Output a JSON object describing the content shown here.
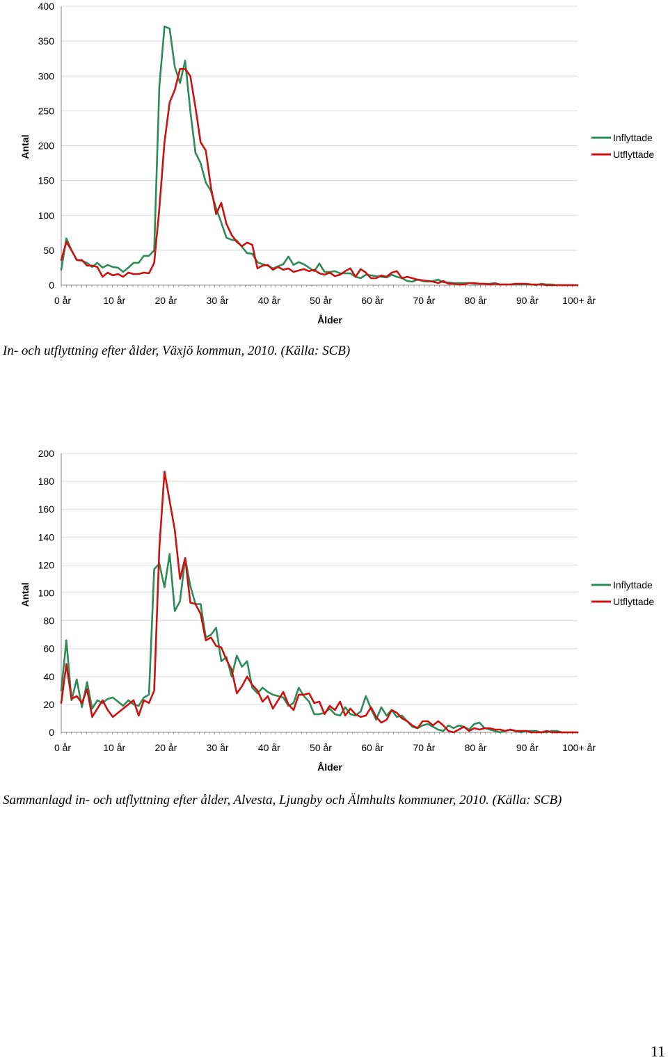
{
  "page_number": "11",
  "chart_data": [
    {
      "type": "line",
      "caption": "In- och utflyttning efter ålder, Växjö kommun, 2010. (Källa: SCB)",
      "xlabel": "Ålder",
      "ylabel": "Antal",
      "ylim": [
        0,
        400
      ],
      "yticks": [
        "0",
        "50",
        "100",
        "150",
        "200",
        "250",
        "300",
        "350",
        "400"
      ],
      "ytick_values": [
        0,
        50,
        100,
        150,
        200,
        250,
        300,
        350,
        400
      ],
      "xticks": [
        "0 år",
        "10 år",
        "20 år",
        "30 år",
        "40 år",
        "50 år",
        "60 år",
        "70 år",
        "80 år",
        "90 år",
        "100+ år"
      ],
      "grid": true,
      "legend_position": "right",
      "categories_count": 101,
      "series": [
        {
          "name": "Inflyttade",
          "color": "#2e8b57",
          "values": [
            22,
            67,
            50,
            36,
            35,
            32,
            26,
            32,
            25,
            29,
            26,
            25,
            19,
            25,
            32,
            32,
            42,
            42,
            50,
            285,
            371,
            368,
            313,
            290,
            322,
            250,
            190,
            175,
            147,
            135,
            110,
            90,
            68,
            65,
            64,
            55,
            46,
            45,
            33,
            30,
            28,
            24,
            27,
            30,
            41,
            29,
            33,
            30,
            25,
            20,
            31,
            19,
            19,
            20,
            17,
            17,
            17,
            12,
            10,
            15,
            14,
            13,
            12,
            11,
            15,
            12,
            10,
            6,
            5,
            8,
            6,
            5,
            6,
            8,
            4,
            4,
            3,
            3,
            3,
            3,
            2,
            2,
            2,
            2,
            3,
            1,
            1,
            1,
            1,
            1,
            1,
            1,
            0,
            2,
            1,
            1,
            0,
            0,
            0,
            0,
            0
          ]
        },
        {
          "name": "Utflyttade",
          "color": "#cc1111",
          "values": [
            36,
            62,
            50,
            36,
            36,
            28,
            28,
            26,
            12,
            18,
            14,
            16,
            12,
            18,
            16,
            16,
            18,
            17,
            32,
            110,
            205,
            262,
            280,
            310,
            310,
            300,
            255,
            205,
            193,
            140,
            102,
            118,
            88,
            72,
            62,
            56,
            61,
            58,
            24,
            28,
            29,
            22,
            26,
            22,
            24,
            19,
            21,
            23,
            20,
            22,
            17,
            15,
            18,
            13,
            15,
            20,
            24,
            12,
            23,
            18,
            10,
            10,
            14,
            12,
            18,
            20,
            10,
            12,
            10,
            8,
            7,
            6,
            5,
            3,
            6,
            2,
            2,
            1,
            1,
            3,
            3,
            2,
            2,
            1,
            2,
            1,
            1,
            1,
            2,
            2,
            2,
            1,
            1,
            1,
            0,
            0,
            0,
            0,
            0,
            0,
            0
          ]
        }
      ]
    },
    {
      "type": "line",
      "caption": "Sammanlagd in- och utflyttning efter ålder, Alvesta, Ljungby och Älmhults kommuner, 2010. (Källa: SCB)",
      "xlabel": "Ålder",
      "ylabel": "Antal",
      "ylim": [
        0,
        200
      ],
      "yticks": [
        "0",
        "20",
        "40",
        "60",
        "80",
        "100",
        "120",
        "140",
        "160",
        "180",
        "200"
      ],
      "ytick_values": [
        0,
        20,
        40,
        60,
        80,
        100,
        120,
        140,
        160,
        180,
        200
      ],
      "xticks": [
        "0 år",
        "10 år",
        "20 år",
        "30 år",
        "40 år",
        "50 år",
        "60 år",
        "70 år",
        "80 år",
        "90 år",
        "100+ år"
      ],
      "grid": true,
      "legend_position": "right",
      "categories_count": 101,
      "series": [
        {
          "name": "Inflyttade",
          "color": "#2e8b57",
          "values": [
            30,
            66,
            23,
            38,
            18,
            36,
            17,
            23,
            21,
            24,
            25,
            22,
            19,
            23,
            20,
            19,
            25,
            27,
            117,
            121,
            104,
            128,
            87,
            94,
            125,
            105,
            92,
            92,
            68,
            70,
            75,
            51,
            54,
            40,
            55,
            47,
            51,
            32,
            28,
            32,
            29,
            27,
            26,
            25,
            19,
            21,
            32,
            26,
            22,
            13,
            13,
            14,
            17,
            13,
            12,
            18,
            13,
            12,
            15,
            26,
            17,
            9,
            18,
            12,
            16,
            11,
            12,
            8,
            4,
            3,
            5,
            6,
            4,
            2,
            1,
            5,
            3,
            5,
            4,
            2,
            6,
            7,
            3,
            2,
            1,
            0,
            1,
            2,
            1,
            0,
            1,
            1,
            1,
            0,
            0,
            1,
            1,
            0,
            0,
            0,
            0
          ]
        },
        {
          "name": "Utflyttade",
          "color": "#cc1111",
          "values": [
            21,
            49,
            24,
            26,
            21,
            31,
            11,
            17,
            23,
            16,
            11,
            14,
            17,
            20,
            23,
            12,
            23,
            21,
            30,
            132,
            187,
            166,
            145,
            110,
            125,
            93,
            92,
            85,
            66,
            68,
            62,
            61,
            52,
            45,
            28,
            33,
            40,
            34,
            30,
            22,
            26,
            17,
            23,
            29,
            20,
            16,
            27,
            27,
            28,
            21,
            22,
            13,
            19,
            16,
            22,
            12,
            17,
            13,
            11,
            12,
            18,
            11,
            7,
            9,
            16,
            14,
            10,
            8,
            5,
            3,
            8,
            8,
            5,
            8,
            5,
            1,
            0,
            2,
            4,
            1,
            3,
            2,
            3,
            3,
            2,
            2,
            1,
            2,
            1,
            1,
            1,
            0,
            0,
            0,
            1,
            0,
            0,
            0,
            0,
            0,
            0
          ]
        }
      ]
    }
  ]
}
